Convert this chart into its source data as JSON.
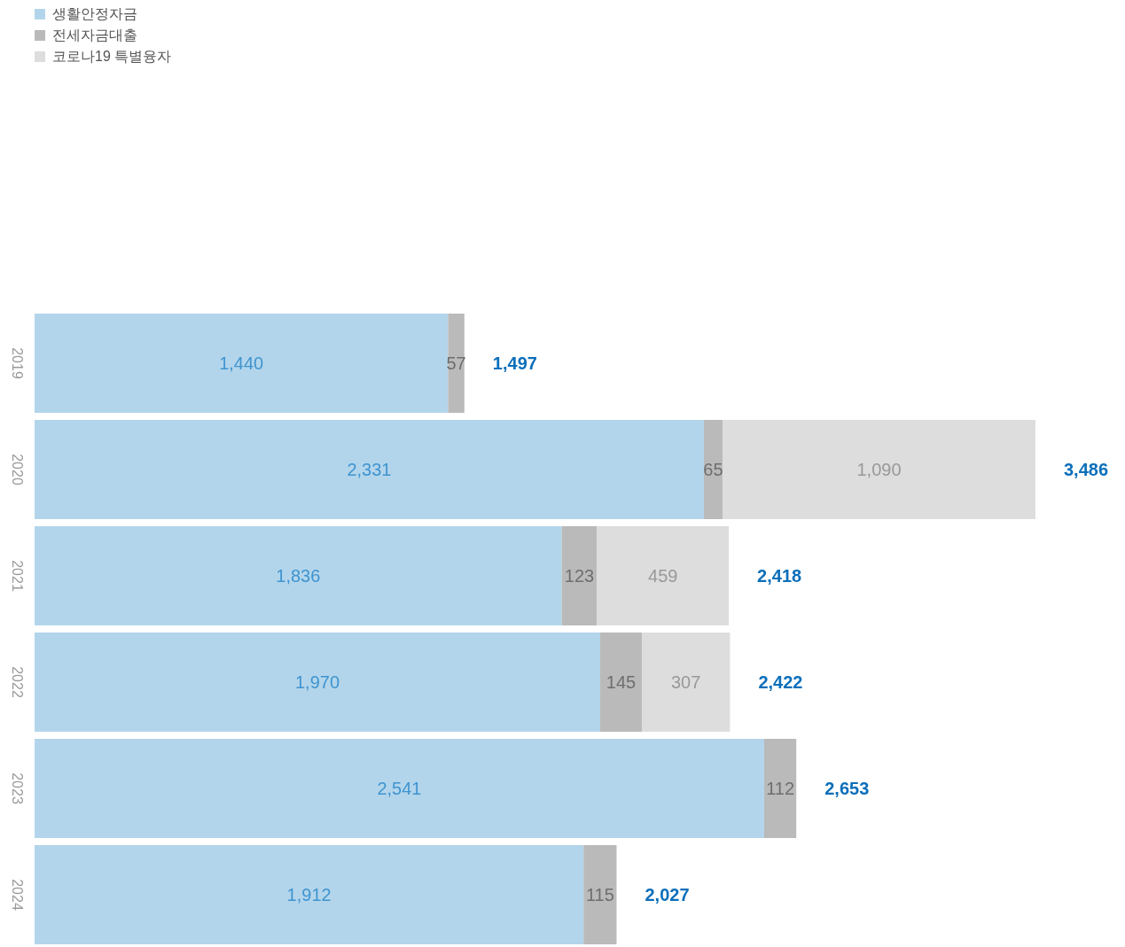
{
  "chart_data": {
    "type": "bar",
    "orientation": "horizontal",
    "stacked": true,
    "categories": [
      "2019",
      "2020",
      "2021",
      "2022",
      "2023",
      "2024"
    ],
    "series": [
      {
        "name": "생활안정자금",
        "color": "#b3d5eb",
        "values": [
          1440,
          2331,
          1836,
          1970,
          2541,
          1912
        ],
        "value_labels": [
          "1,440",
          "2,331",
          "1,836",
          "1,970",
          "2,541",
          "1,912"
        ]
      },
      {
        "name": "전세자금대출",
        "color": "#bababa",
        "values": [
          57,
          65,
          123,
          145,
          112,
          115
        ],
        "value_labels": [
          "57",
          "65",
          "123",
          "145",
          "112",
          "115"
        ]
      },
      {
        "name": "코로나19 특별융자",
        "color": "#dddddd",
        "values": [
          null,
          1090,
          459,
          307,
          null,
          null
        ],
        "value_labels": [
          null,
          "1,090",
          "459",
          "307",
          null,
          null
        ]
      }
    ],
    "totals": [
      "1,497",
      "3,486",
      "2,418",
      "2,422",
      "2,653",
      "2,027"
    ],
    "legend": "top left",
    "tick_labels": "y"
  }
}
